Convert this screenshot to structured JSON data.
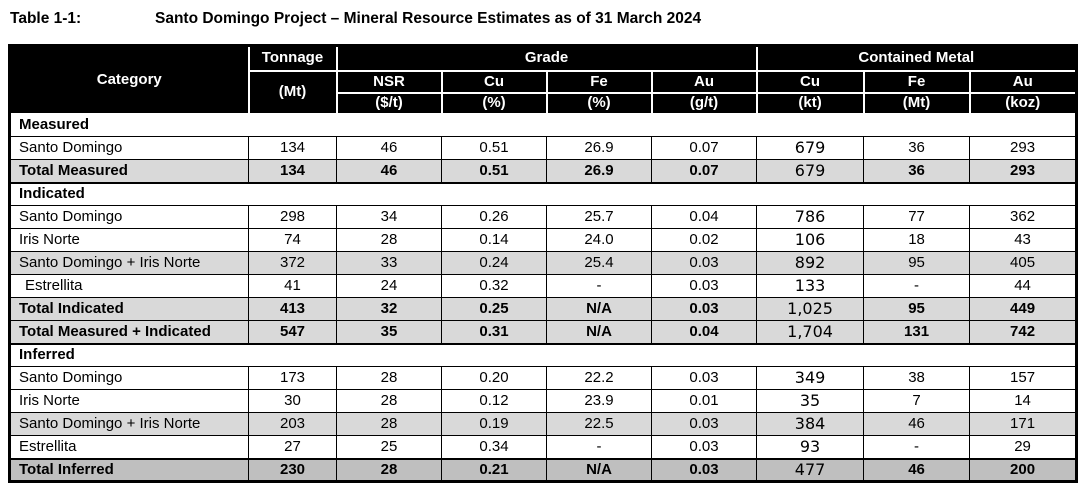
{
  "title": {
    "label": "Table 1-1:",
    "text": "Santo Domingo Project – Mineral Resource Estimates as of 31 March 2024"
  },
  "colors": {
    "header_bg": "#000000",
    "header_text": "#ffffff",
    "highlight_row_bg": "#d9d9d9",
    "grand_total_row_bg": "#bfbfbf",
    "border": "#000000"
  },
  "table": {
    "column_keys": [
      "tonnage_mt",
      "nsr_usd_per_t",
      "cu_pct",
      "fe_pct",
      "au_gpt",
      "cu_kt",
      "fe_mt",
      "au_koz"
    ],
    "header": {
      "category": "Category",
      "tonnage": {
        "title": "Tonnage",
        "unit": "(Mt)"
      },
      "grade": {
        "title": "Grade",
        "columns": [
          {
            "name": "NSR",
            "unit": "($/t)"
          },
          {
            "name": "Cu",
            "unit": "(%)"
          },
          {
            "name": "Fe",
            "unit": "(%)"
          },
          {
            "name": "Au",
            "unit": "(g/t)"
          }
        ]
      },
      "contained_metal": {
        "title": "Contained Metal",
        "columns": [
          {
            "name": "Cu",
            "unit": "(kt)"
          },
          {
            "name": "Fe",
            "unit": "(Mt)"
          },
          {
            "name": "Au",
            "unit": "(koz)"
          }
        ]
      }
    },
    "sections": [
      {
        "name": "Measured",
        "rows": [
          {
            "category": "Santo Domingo",
            "style": "data",
            "values": [
              "134",
              "46",
              "0.51",
              "26.9",
              "0.07",
              "679",
              "36",
              "293"
            ]
          },
          {
            "category": "Total Measured",
            "style": "total",
            "values": [
              "134",
              "46",
              "0.51",
              "26.9",
              "0.07",
              "679",
              "36",
              "293"
            ]
          }
        ]
      },
      {
        "name": "Indicated",
        "rows": [
          {
            "category": "Santo Domingo",
            "style": "data",
            "values": [
              "298",
              "34",
              "0.26",
              "25.7",
              "0.04",
              "786",
              "77",
              "362"
            ]
          },
          {
            "category": "Iris Norte",
            "style": "data",
            "values": [
              "74",
              "28",
              "0.14",
              "24.0",
              "0.02",
              "106",
              "18",
              "43"
            ]
          },
          {
            "category": "Santo Domingo + Iris Norte",
            "style": "subtotal",
            "values": [
              "372",
              "33",
              "0.24",
              "25.4",
              "0.03",
              "892",
              "95",
              "405"
            ]
          },
          {
            "category": "Estrellita",
            "style": "data",
            "indent": true,
            "values": [
              "41",
              "24",
              "0.32",
              "-",
              "0.03",
              "133",
              "-",
              "44"
            ]
          },
          {
            "category": "Total Indicated",
            "style": "total",
            "values": [
              "413",
              "32",
              "0.25",
              "N/A",
              "0.03",
              "1,025",
              "95",
              "449"
            ]
          },
          {
            "category": "Total Measured + Indicated",
            "style": "total",
            "values": [
              "547",
              "35",
              "0.31",
              "N/A",
              "0.04",
              "1,704",
              "131",
              "742"
            ]
          }
        ]
      },
      {
        "name": "Inferred",
        "rows": [
          {
            "category": "Santo Domingo",
            "style": "data",
            "values": [
              "173",
              "28",
              "0.20",
              "22.2",
              "0.03",
              "349",
              "38",
              "157"
            ]
          },
          {
            "category": "Iris Norte",
            "style": "data",
            "values": [
              "30",
              "28",
              "0.12",
              "23.9",
              "0.01",
              "35",
              "7",
              "14"
            ]
          },
          {
            "category": "Santo Domingo + Iris Norte",
            "style": "subtotal",
            "values": [
              "203",
              "28",
              "0.19",
              "22.5",
              "0.03",
              "384",
              "46",
              "171"
            ]
          },
          {
            "category": "Estrellita",
            "style": "data",
            "values": [
              "27",
              "25",
              "0.34",
              "-",
              "0.03",
              "93",
              "-",
              "29"
            ]
          },
          {
            "category": "Total Inferred",
            "style": "grand",
            "values": [
              "230",
              "28",
              "0.21",
              "N/A",
              "0.03",
              "477",
              "46",
              "200"
            ]
          }
        ]
      }
    ]
  }
}
